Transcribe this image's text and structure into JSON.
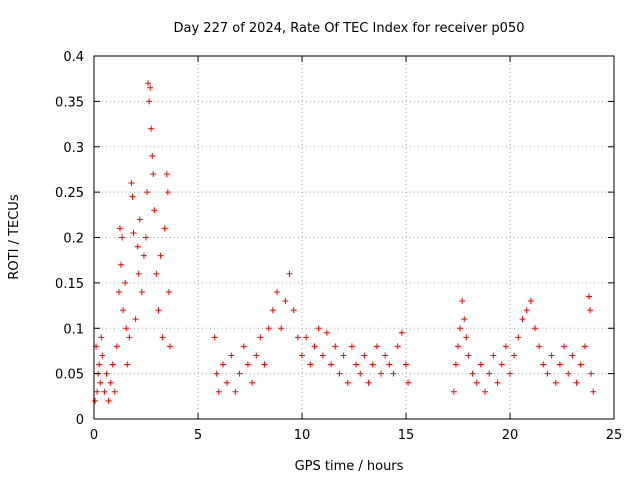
{
  "chart_data": {
    "type": "scatter",
    "title": "Day 227 of 2024, Rate Of TEC Index for receiver p050",
    "xlabel": "GPS time / hours",
    "ylabel": "ROTI / TECUs",
    "xlim": [
      0,
      25
    ],
    "ylim": [
      0,
      0.4
    ],
    "x_ticks": [
      0,
      5,
      10,
      15,
      20,
      25
    ],
    "x_tick_labels": [
      "0",
      "5",
      "10",
      "15",
      "20",
      "25"
    ],
    "y_ticks": [
      0,
      0.05,
      0.1,
      0.15,
      0.2,
      0.25,
      0.3,
      0.35,
      0.4
    ],
    "y_tick_labels": [
      "0",
      "0.05",
      "0.1",
      "0.15",
      "0.2",
      "0.25",
      "0.3",
      "0.35",
      "0.4"
    ],
    "grid": true,
    "marker": "+",
    "marker_color": "#ff0000",
    "series": [
      {
        "name": "ROTI",
        "points": [
          [
            0.05,
            0.02
          ],
          [
            0.1,
            0.08
          ],
          [
            0.15,
            0.03
          ],
          [
            0.2,
            0.05
          ],
          [
            0.25,
            0.06
          ],
          [
            0.3,
            0.04
          ],
          [
            0.35,
            0.09
          ],
          [
            0.4,
            0.07
          ],
          [
            0.5,
            0.03
          ],
          [
            0.6,
            0.05
          ],
          [
            0.7,
            0.02
          ],
          [
            0.8,
            0.04
          ],
          [
            0.9,
            0.06
          ],
          [
            1.0,
            0.03
          ],
          [
            1.1,
            0.08
          ],
          [
            1.2,
            0.14
          ],
          [
            1.25,
            0.21
          ],
          [
            1.3,
            0.17
          ],
          [
            1.35,
            0.2
          ],
          [
            1.4,
            0.12
          ],
          [
            1.5,
            0.15
          ],
          [
            1.55,
            0.1
          ],
          [
            1.6,
            0.06
          ],
          [
            1.7,
            0.09
          ],
          [
            1.8,
            0.26
          ],
          [
            1.85,
            0.245
          ],
          [
            1.9,
            0.205
          ],
          [
            2.0,
            0.11
          ],
          [
            2.1,
            0.19
          ],
          [
            2.15,
            0.16
          ],
          [
            2.2,
            0.22
          ],
          [
            2.3,
            0.14
          ],
          [
            2.4,
            0.18
          ],
          [
            2.5,
            0.2
          ],
          [
            2.55,
            0.25
          ],
          [
            2.6,
            0.37
          ],
          [
            2.65,
            0.35
          ],
          [
            2.7,
            0.365
          ],
          [
            2.75,
            0.32
          ],
          [
            2.8,
            0.29
          ],
          [
            2.85,
            0.27
          ],
          [
            2.9,
            0.23
          ],
          [
            3.0,
            0.16
          ],
          [
            3.1,
            0.12
          ],
          [
            3.2,
            0.18
          ],
          [
            3.3,
            0.09
          ],
          [
            3.4,
            0.21
          ],
          [
            3.5,
            0.27
          ],
          [
            3.55,
            0.25
          ],
          [
            3.6,
            0.14
          ],
          [
            3.65,
            0.08
          ],
          [
            5.8,
            0.09
          ],
          [
            5.9,
            0.05
          ],
          [
            6.0,
            0.03
          ],
          [
            6.2,
            0.06
          ],
          [
            6.4,
            0.04
          ],
          [
            6.6,
            0.07
          ],
          [
            6.8,
            0.03
          ],
          [
            7.0,
            0.05
          ],
          [
            7.2,
            0.08
          ],
          [
            7.4,
            0.06
          ],
          [
            7.6,
            0.04
          ],
          [
            7.8,
            0.07
          ],
          [
            8.0,
            0.09
          ],
          [
            8.2,
            0.06
          ],
          [
            8.4,
            0.1
          ],
          [
            8.6,
            0.12
          ],
          [
            8.8,
            0.14
          ],
          [
            9.0,
            0.1
          ],
          [
            9.2,
            0.13
          ],
          [
            9.4,
            0.16
          ],
          [
            9.6,
            0.12
          ],
          [
            9.8,
            0.09
          ],
          [
            10.0,
            0.07
          ],
          [
            10.2,
            0.09
          ],
          [
            10.4,
            0.06
          ],
          [
            10.6,
            0.08
          ],
          [
            10.8,
            0.1
          ],
          [
            11.0,
            0.07
          ],
          [
            11.2,
            0.095
          ],
          [
            11.4,
            0.06
          ],
          [
            11.6,
            0.08
          ],
          [
            11.8,
            0.05
          ],
          [
            12.0,
            0.07
          ],
          [
            12.2,
            0.04
          ],
          [
            12.4,
            0.08
          ],
          [
            12.6,
            0.06
          ],
          [
            12.8,
            0.05
          ],
          [
            13.0,
            0.07
          ],
          [
            13.2,
            0.04
          ],
          [
            13.4,
            0.06
          ],
          [
            13.6,
            0.08
          ],
          [
            13.8,
            0.05
          ],
          [
            14.0,
            0.07
          ],
          [
            14.2,
            0.06
          ],
          [
            14.4,
            0.05
          ],
          [
            14.6,
            0.08
          ],
          [
            14.8,
            0.095
          ],
          [
            15.0,
            0.06
          ],
          [
            15.1,
            0.04
          ],
          [
            17.3,
            0.03
          ],
          [
            17.4,
            0.06
          ],
          [
            17.5,
            0.08
          ],
          [
            17.6,
            0.1
          ],
          [
            17.7,
            0.13
          ],
          [
            17.8,
            0.11
          ],
          [
            17.9,
            0.09
          ],
          [
            18.0,
            0.07
          ],
          [
            18.2,
            0.05
          ],
          [
            18.4,
            0.04
          ],
          [
            18.6,
            0.06
          ],
          [
            18.8,
            0.03
          ],
          [
            19.0,
            0.05
          ],
          [
            19.2,
            0.07
          ],
          [
            19.4,
            0.04
          ],
          [
            19.6,
            0.06
          ],
          [
            19.8,
            0.08
          ],
          [
            20.0,
            0.05
          ],
          [
            20.2,
            0.07
          ],
          [
            20.4,
            0.09
          ],
          [
            20.6,
            0.11
          ],
          [
            20.8,
            0.12
          ],
          [
            21.0,
            0.13
          ],
          [
            21.2,
            0.1
          ],
          [
            21.4,
            0.08
          ],
          [
            21.6,
            0.06
          ],
          [
            21.8,
            0.05
          ],
          [
            22.0,
            0.07
          ],
          [
            22.2,
            0.04
          ],
          [
            22.4,
            0.06
          ],
          [
            22.6,
            0.08
          ],
          [
            22.8,
            0.05
          ],
          [
            23.0,
            0.07
          ],
          [
            23.2,
            0.04
          ],
          [
            23.4,
            0.06
          ],
          [
            23.6,
            0.08
          ],
          [
            23.8,
            0.135
          ],
          [
            23.85,
            0.12
          ],
          [
            23.9,
            0.05
          ],
          [
            24.0,
            0.03
          ]
        ]
      }
    ]
  }
}
